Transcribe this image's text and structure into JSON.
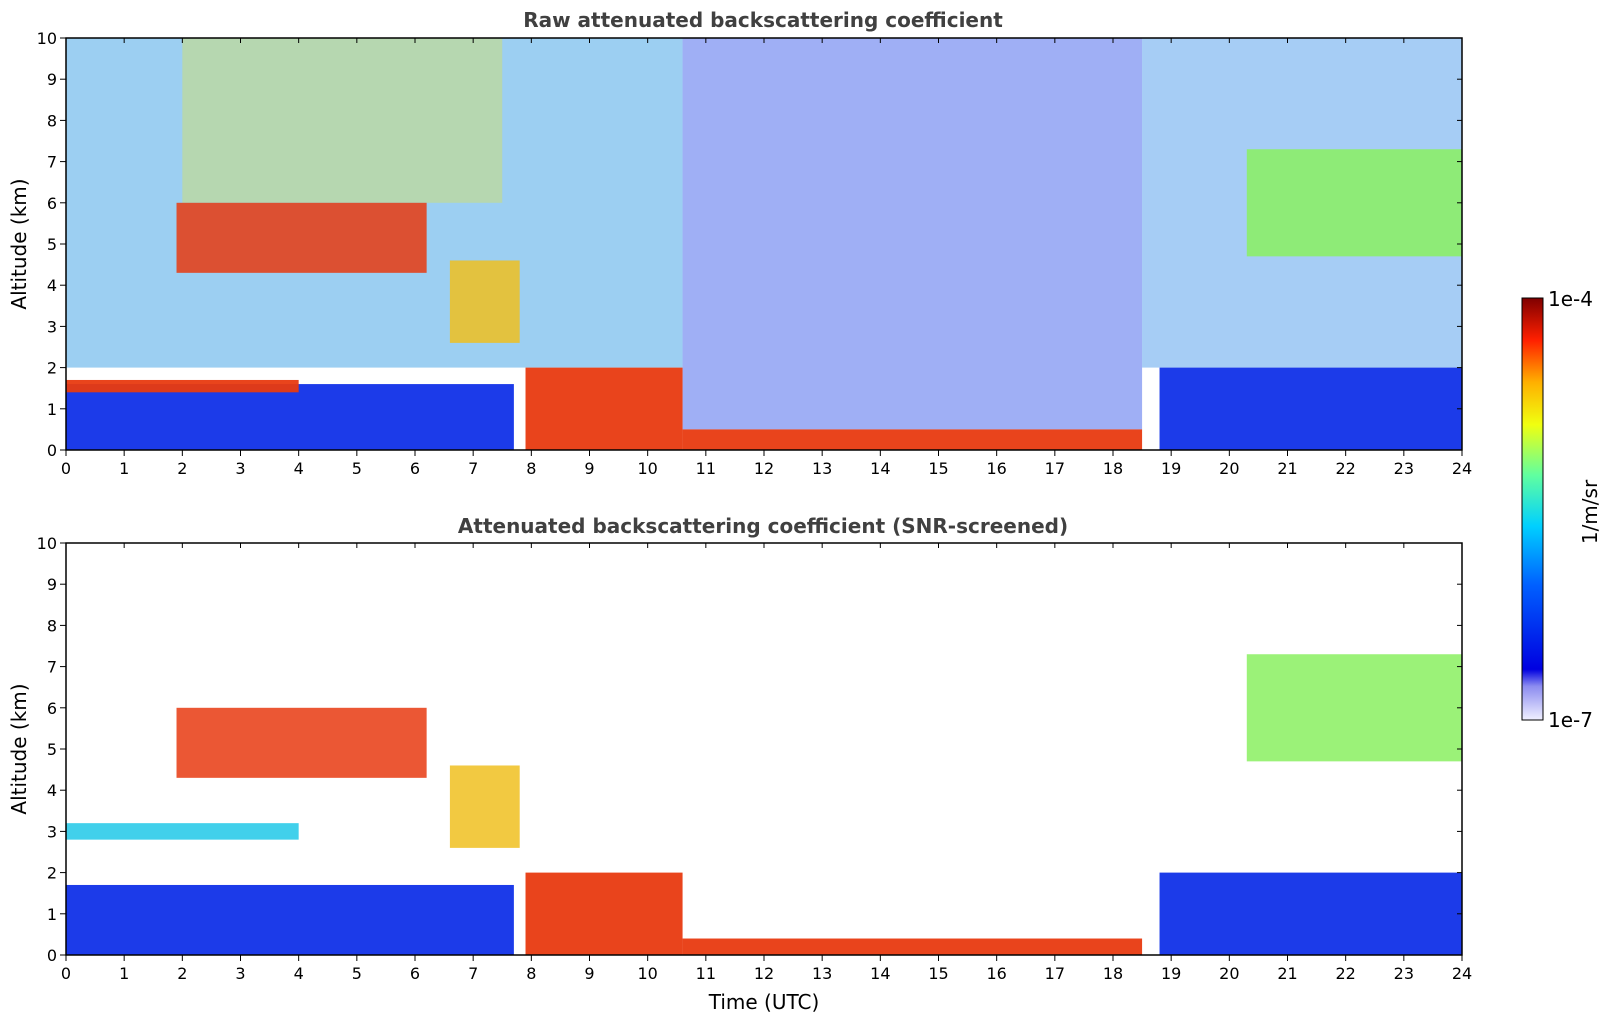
{
  "chart_data": [
    {
      "type": "heatmap",
      "title": "Raw attenuated backscattering coefficient",
      "xlabel": "",
      "ylabel": "Altitude (km)",
      "xlim": [
        0,
        24
      ],
      "ylim": [
        0,
        10
      ],
      "xticks": [
        "0",
        "1",
        "2",
        "3",
        "4",
        "5",
        "6",
        "7",
        "8",
        "9",
        "10",
        "11",
        "12",
        "13",
        "14",
        "15",
        "16",
        "17",
        "18",
        "19",
        "20",
        "21",
        "22",
        "23",
        "24"
      ],
      "yticks": [
        "0",
        "1",
        "2",
        "3",
        "4",
        "5",
        "6",
        "7",
        "8",
        "9",
        "10"
      ],
      "features": [
        {
          "kind": "aloft_cloud",
          "x": [
            1.9,
            6.2
          ],
          "y": [
            4.3,
            6.0
          ],
          "level": "high"
        },
        {
          "kind": "aloft_cloud",
          "x": [
            6.6,
            7.8
          ],
          "y": [
            2.6,
            4.6
          ],
          "level": "medium-high"
        },
        {
          "kind": "aloft_cloud",
          "x": [
            20.3,
            24.0
          ],
          "y": [
            4.7,
            7.3
          ],
          "level": "medium"
        },
        {
          "kind": "boundary_layer",
          "x": [
            0,
            7.7
          ],
          "y": [
            0,
            1.6
          ],
          "level": "low"
        },
        {
          "kind": "cloud_top_layer",
          "x": [
            0,
            4.0
          ],
          "y": [
            1.4,
            1.7
          ],
          "level": "high"
        },
        {
          "kind": "fog_precip",
          "x": [
            7.9,
            10.6
          ],
          "y": [
            0,
            2.0
          ],
          "level": "high"
        },
        {
          "kind": "surface_layer",
          "x": [
            10.6,
            18.5
          ],
          "y": [
            0,
            0.5
          ],
          "level": "high"
        },
        {
          "kind": "boundary_layer",
          "x": [
            18.8,
            24.0
          ],
          "y": [
            0,
            2.0
          ],
          "level": "low"
        }
      ]
    },
    {
      "type": "heatmap",
      "title": "Attenuated backscattering coefficient (SNR-screened)",
      "xlabel": "Time (UTC)",
      "ylabel": "Altitude (km)",
      "xlim": [
        0,
        24
      ],
      "ylim": [
        0,
        10
      ],
      "xticks": [
        "0",
        "1",
        "2",
        "3",
        "4",
        "5",
        "6",
        "7",
        "8",
        "9",
        "10",
        "11",
        "12",
        "13",
        "14",
        "15",
        "16",
        "17",
        "18",
        "19",
        "20",
        "21",
        "22",
        "23",
        "24"
      ],
      "yticks": [
        "0",
        "1",
        "2",
        "3",
        "4",
        "5",
        "6",
        "7",
        "8",
        "9",
        "10"
      ],
      "features": [
        {
          "kind": "aloft_cloud",
          "x": [
            1.9,
            6.2
          ],
          "y": [
            4.3,
            6.0
          ],
          "level": "high"
        },
        {
          "kind": "aloft_cloud",
          "x": [
            6.6,
            7.8
          ],
          "y": [
            2.6,
            4.6
          ],
          "level": "medium-high"
        },
        {
          "kind": "aerosol_layer",
          "x": [
            0,
            4.0
          ],
          "y": [
            2.8,
            3.2
          ],
          "level": "low-medium"
        },
        {
          "kind": "aloft_cloud",
          "x": [
            20.3,
            24.0
          ],
          "y": [
            4.7,
            7.3
          ],
          "level": "medium"
        },
        {
          "kind": "boundary_layer",
          "x": [
            0,
            7.7
          ],
          "y": [
            0,
            1.7
          ],
          "level": "low"
        },
        {
          "kind": "fog_precip",
          "x": [
            7.9,
            10.6
          ],
          "y": [
            0,
            2.0
          ],
          "level": "high"
        },
        {
          "kind": "surface_layer",
          "x": [
            10.6,
            18.5
          ],
          "y": [
            0,
            0.4
          ],
          "level": "high"
        },
        {
          "kind": "boundary_layer",
          "x": [
            18.8,
            24.0
          ],
          "y": [
            0,
            2.0
          ],
          "level": "low"
        }
      ]
    }
  ],
  "colorbar": {
    "label": "1/m/sr",
    "max_label": "1e-4",
    "min_label": "1e-7",
    "scale": "log",
    "colormap": "jet",
    "colors": [
      "#7f0000",
      "#ff0000",
      "#ff7f00",
      "#ffff00",
      "#7fff7f",
      "#00ffff",
      "#007fff",
      "#0000ff",
      "#00007f",
      "#c8c8f0"
    ]
  }
}
